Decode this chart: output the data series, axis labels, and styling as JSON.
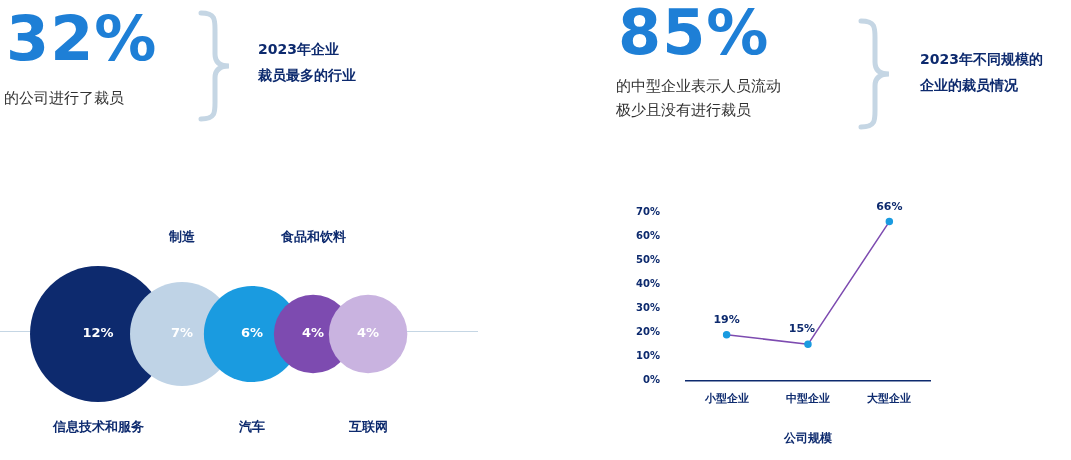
{
  "chart_data": [
    {
      "type": "other",
      "title": "2023年企业裁员最多的行业",
      "annotations": [
        "32%",
        "的公司进行了裁员"
      ],
      "categories": [
        "信息技术和服务",
        "制造",
        "汽车",
        "食品和饮料",
        "互联网"
      ],
      "values": [
        12,
        7,
        6,
        4,
        4
      ],
      "value_labels": [
        "12%",
        "7%",
        "6%",
        "4%",
        "4%"
      ],
      "colors": [
        "#0d2a6e",
        "#bfd3e6",
        "#1a9be0",
        "#7d4bb0",
        "#c9b3e0"
      ]
    },
    {
      "type": "line",
      "title": "2023年不同规模的企业的裁员情况",
      "annotations": [
        "85%",
        "的中型企业表示人员流动极少且没有进行裁员"
      ],
      "categories": [
        "小型企业",
        "中型企业",
        "大型企业"
      ],
      "xlabel": "公司规模",
      "series": [
        {
          "color": "#7d4bb0",
          "values": [
            19,
            15,
            66
          ]
        }
      ],
      "value_labels": [
        "19%",
        "15%",
        "66%"
      ],
      "ylim": [
        0,
        70
      ],
      "yticks": [
        {
          "value": 0,
          "label": "0%"
        },
        {
          "value": 10,
          "label": "10%"
        },
        {
          "value": 20,
          "label": "20%"
        },
        {
          "value": 30,
          "label": "30%"
        },
        {
          "value": 40,
          "label": "40%"
        },
        {
          "value": 50,
          "label": "50%"
        },
        {
          "value": 60,
          "label": "60%"
        },
        {
          "value": 70,
          "label": "70%"
        }
      ],
      "grid": false,
      "legend": false,
      "marker": "circle"
    }
  ]
}
